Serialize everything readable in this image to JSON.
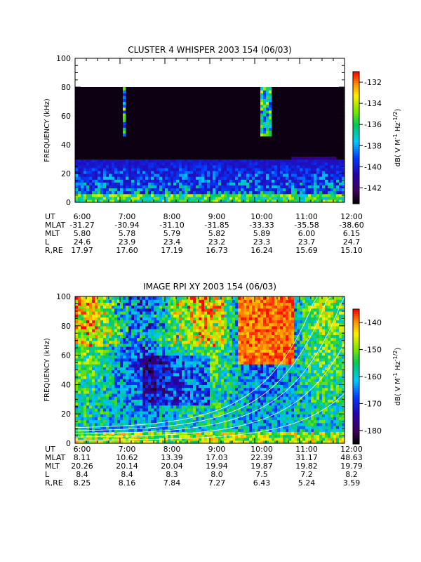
{
  "chart_data": [
    {
      "type": "heatmap",
      "title": "CLUSTER 4 WHISPER 2003 154 (06/03)",
      "ylabel": "FREQUENCY (kHz)",
      "ylim": [
        0,
        100
      ],
      "yticks": [
        "0",
        "20",
        "40",
        "60",
        "80",
        "100"
      ],
      "data_top_khz": 80,
      "xrange_hours": [
        6,
        12
      ],
      "xticks": [
        "6:00",
        "7:00",
        "8:00",
        "9:00",
        "10:00",
        "11:00",
        "12:00"
      ],
      "colorbar": {
        "label": "dB( V M",
        "label_sup1": "-1",
        "label_mid": " Hz",
        "label_sup2": "-1/2",
        "label_end": ")",
        "range": [
          -143.5,
          -131
        ],
        "ticks": [
          "-132",
          "-134",
          "-136",
          "-138",
          "-140",
          "-142"
        ],
        "tick_values": [
          -132,
          -134,
          -136,
          -138,
          -140,
          -142
        ]
      },
      "ephemeris": [
        {
          "label": "UT",
          "values": [
            "6:00",
            "7:00",
            "8:00",
            "9:00",
            "10:00",
            "11:00",
            "12:00"
          ]
        },
        {
          "label": "MLAT",
          "values": [
            "-31.27",
            "-30.94",
            "-31.10",
            "-31.85",
            "-33.33",
            "-35.58",
            "-38.60"
          ]
        },
        {
          "label": "MLT",
          "values": [
            "5.80",
            "5.78",
            "5.79",
            "5.82",
            "5.89",
            "6.00",
            "6.15"
          ]
        },
        {
          "label": "L",
          "values": [
            "24.6",
            "23.9",
            "23.4",
            "23.2",
            "23.3",
            "23.7",
            "24.7"
          ]
        },
        {
          "label": "R,RE",
          "values": [
            "17.97",
            "17.60",
            "17.19",
            "16.73",
            "16.24",
            "15.69",
            "15.10"
          ]
        }
      ]
    },
    {
      "type": "heatmap",
      "title": "IMAGE RPI XY 2003 154 (06/03)",
      "ylabel": "FREQUENCY (kHz)",
      "ylim": [
        0,
        100
      ],
      "yticks": [
        "0",
        "20",
        "40",
        "60",
        "80",
        "100"
      ],
      "data_top_khz": 100,
      "xrange_hours": [
        6,
        12
      ],
      "xticks": [
        "6:00",
        "7:00",
        "8:00",
        "9:00",
        "10:00",
        "11:00",
        "12:00"
      ],
      "colorbar": {
        "label": "dB( V M",
        "label_sup1": "-1",
        "label_mid": " Hz",
        "label_sup2": "-1/2",
        "label_end": ")",
        "range": [
          -185,
          -135
        ],
        "ticks": [
          "-140",
          "-150",
          "-160",
          "-170",
          "-180"
        ],
        "tick_values": [
          -140,
          -150,
          -160,
          -170,
          -180
        ]
      },
      "ephemeris": [
        {
          "label": "UT",
          "values": [
            "6:00",
            "7:00",
            "8:00",
            "9:00",
            "10:00",
            "11:00",
            "12:00"
          ]
        },
        {
          "label": "MLAT",
          "values": [
            "8.11",
            "10.62",
            "13.39",
            "17.03",
            "22.39",
            "31.17",
            "48.63"
          ]
        },
        {
          "label": "MLT",
          "values": [
            "20.26",
            "20.14",
            "20.04",
            "19.94",
            "19.87",
            "19.82",
            "19.79"
          ]
        },
        {
          "label": "L",
          "values": [
            "8.4",
            "8.4",
            "8.3",
            "8.0",
            "7.5",
            "7.2",
            "8.2"
          ]
        },
        {
          "label": "R,RE",
          "values": [
            "8.25",
            "8.16",
            "7.84",
            "7.27",
            "6.43",
            "5.24",
            "3.59"
          ]
        }
      ]
    }
  ]
}
